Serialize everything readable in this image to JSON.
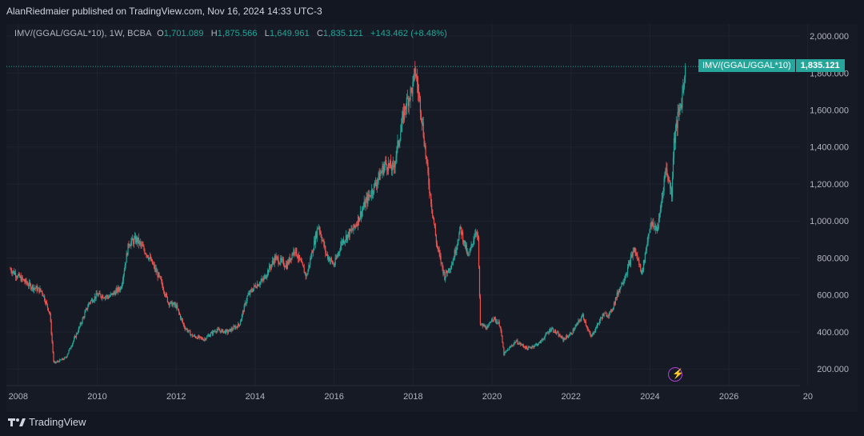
{
  "header": {
    "publisher": "AlanRiedmaier published on TradingView.com, Nov 16, 2024 14:33 UTC-3"
  },
  "legend": {
    "symbol": "IMV/(GGAL/GGAL*10), 1W, BCBA",
    "o_label": "O",
    "o_value": "1,701.089",
    "h_label": "H",
    "h_value": "1,875.566",
    "l_label": "L",
    "l_value": "1,649.961",
    "c_label": "C",
    "c_value": "1,835.121",
    "change": "+143.462 (+8.48%)"
  },
  "price_label": {
    "symbol": "IMV/(GGAL/GGAL*10)",
    "value": "1,835.121"
  },
  "footer": {
    "brand": "TradingView"
  },
  "colors": {
    "up": "#26a69a",
    "down": "#ef5350",
    "background": "#131722",
    "grid": "#1f2330",
    "text": "#b2b5be"
  },
  "icons": {
    "brand": "tradingview-logo-icon",
    "event": "flash-icon"
  },
  "chart_data": {
    "type": "line",
    "title": "",
    "xlabel": "",
    "ylabel": "",
    "grid": true,
    "x_ticks": [
      "2008",
      "2010",
      "2012",
      "2014",
      "2016",
      "2018",
      "2020",
      "2022",
      "2024",
      "2026",
      "20"
    ],
    "y_ticks": [
      "200.000",
      "400.000",
      "600.000",
      "800.000",
      "1,000.000",
      "1,200.000",
      "1,400.000",
      "1,600.000",
      "1,800.000",
      "2,000.000"
    ],
    "ylim": [
      110,
      2065
    ],
    "xlim": [
      2007.7,
      2027.8
    ],
    "last_value": 1835.121,
    "series": [
      {
        "points": [
          [
            2007.8,
            740
          ],
          [
            2008.0,
            700
          ],
          [
            2008.3,
            650
          ],
          [
            2008.6,
            620
          ],
          [
            2008.8,
            500
          ],
          [
            2008.9,
            230
          ],
          [
            2009.2,
            260
          ],
          [
            2009.5,
            400
          ],
          [
            2009.8,
            560
          ],
          [
            2010.0,
            600
          ],
          [
            2010.3,
            590
          ],
          [
            2010.6,
            640
          ],
          [
            2010.8,
            880
          ],
          [
            2011.0,
            900
          ],
          [
            2011.3,
            810
          ],
          [
            2011.6,
            680
          ],
          [
            2011.8,
            560
          ],
          [
            2012.0,
            540
          ],
          [
            2012.2,
            430
          ],
          [
            2012.4,
            380
          ],
          [
            2012.7,
            360
          ],
          [
            2013.0,
            410
          ],
          [
            2013.3,
            400
          ],
          [
            2013.6,
            440
          ],
          [
            2013.8,
            590
          ],
          [
            2014.0,
            650
          ],
          [
            2014.2,
            680
          ],
          [
            2014.5,
            800
          ],
          [
            2014.8,
            760
          ],
          [
            2015.0,
            850
          ],
          [
            2015.3,
            700
          ],
          [
            2015.6,
            980
          ],
          [
            2015.8,
            820
          ],
          [
            2016.0,
            760
          ],
          [
            2016.2,
            890
          ],
          [
            2016.5,
            960
          ],
          [
            2016.8,
            1100
          ],
          [
            2017.0,
            1180
          ],
          [
            2017.3,
            1310
          ],
          [
            2017.5,
            1280
          ],
          [
            2017.8,
            1620
          ],
          [
            2018.0,
            1730
          ],
          [
            2018.05,
            1820
          ],
          [
            2018.2,
            1600
          ],
          [
            2018.4,
            1200
          ],
          [
            2018.6,
            870
          ],
          [
            2018.8,
            700
          ],
          [
            2019.0,
            780
          ],
          [
            2019.2,
            960
          ],
          [
            2019.4,
            800
          ],
          [
            2019.6,
            960
          ],
          [
            2019.65,
            890
          ],
          [
            2019.7,
            440
          ],
          [
            2019.9,
            420
          ],
          [
            2020.0,
            480
          ],
          [
            2020.2,
            440
          ],
          [
            2020.3,
            280
          ],
          [
            2020.6,
            350
          ],
          [
            2020.9,
            310
          ],
          [
            2021.2,
            340
          ],
          [
            2021.5,
            420
          ],
          [
            2021.8,
            360
          ],
          [
            2022.0,
            390
          ],
          [
            2022.3,
            490
          ],
          [
            2022.5,
            370
          ],
          [
            2022.8,
            490
          ],
          [
            2023.0,
            500
          ],
          [
            2023.2,
            620
          ],
          [
            2023.4,
            720
          ],
          [
            2023.6,
            850
          ],
          [
            2023.8,
            720
          ],
          [
            2024.0,
            980
          ],
          [
            2024.2,
            960
          ],
          [
            2024.4,
            1290
          ],
          [
            2024.55,
            1150
          ],
          [
            2024.6,
            1420
          ],
          [
            2024.7,
            1550
          ],
          [
            2024.8,
            1650
          ],
          [
            2024.9,
            1835
          ]
        ]
      }
    ]
  }
}
